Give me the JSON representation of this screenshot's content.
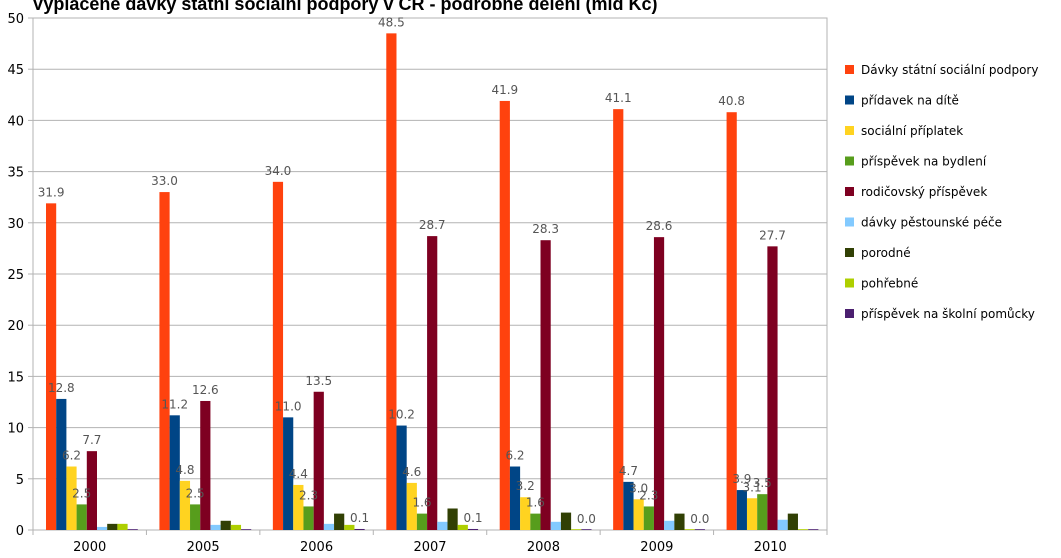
{
  "chart_data": {
    "type": "bar",
    "title": "Vyplacené dávky státní sociální podpory v ČR - podrobné dělení (mld Kč)",
    "categories": [
      "2000",
      "2005",
      "2006",
      "2007",
      "2008",
      "2009",
      "2010"
    ],
    "ylim": [
      0,
      50
    ],
    "yticks": [
      "0",
      "5",
      "10",
      "15",
      "20",
      "25",
      "30",
      "35",
      "40",
      "45",
      "50"
    ],
    "grid": true,
    "legend_position": "right",
    "series": [
      {
        "name": "Dávky státní sociální podpory",
        "color": "#ff420e",
        "values": [
          31.9,
          33.0,
          34.0,
          48.5,
          41.9,
          41.1,
          40.8
        ],
        "labels": [
          "31.9",
          "33.0",
          "34.0",
          "48.5",
          "41.9",
          "41.1",
          "40.8"
        ]
      },
      {
        "name": "přídavek na dítě",
        "color": "#004586",
        "values": [
          12.8,
          11.2,
          11.0,
          10.2,
          6.2,
          4.7,
          3.9
        ],
        "labels": [
          "12.8",
          "11.2",
          "11.0",
          "10.2",
          "6.2",
          "4.7",
          "3.9"
        ]
      },
      {
        "name": "sociální příplatek",
        "color": "#ffd320",
        "values": [
          6.2,
          4.8,
          4.4,
          4.6,
          3.2,
          3.0,
          3.1
        ],
        "labels": [
          "6.2",
          "4.8",
          "4.4",
          "4.6",
          "3.2",
          "3.0",
          "3.1"
        ]
      },
      {
        "name": "příspěvek na bydlení",
        "color": "#579d1c",
        "values": [
          2.5,
          2.5,
          2.3,
          1.6,
          1.6,
          2.3,
          3.5
        ],
        "labels": [
          "2.5",
          "2.5",
          "2.3",
          "1.6",
          "1.6",
          "2.3",
          "3.5"
        ]
      },
      {
        "name": "rodičovský příspěvek",
        "color": "#7e0021",
        "values": [
          7.7,
          12.6,
          13.5,
          28.7,
          28.3,
          28.6,
          27.7
        ],
        "labels": [
          "7.7",
          "12.6",
          "13.5",
          "28.7",
          "28.3",
          "28.6",
          "27.7"
        ]
      },
      {
        "name": "dávky pěstounské péče",
        "color": "#83caff",
        "values": [
          0.3,
          0.5,
          0.6,
          0.8,
          0.8,
          0.9,
          1.0
        ],
        "labels": [
          "",
          "",
          "",
          "",
          "",
          "",
          ""
        ]
      },
      {
        "name": "porodné",
        "color": "#314004",
        "values": [
          0.6,
          0.9,
          1.6,
          2.1,
          1.7,
          1.6,
          1.6
        ],
        "labels": [
          "",
          "",
          "",
          "",
          "",
          "",
          ""
        ]
      },
      {
        "name": "pohřebné",
        "color": "#aecf00",
        "values": [
          0.6,
          0.5,
          0.5,
          0.5,
          0.0,
          0.0,
          0.0
        ],
        "labels": [
          "",
          "",
          "",
          "",
          "",
          "",
          ""
        ]
      },
      {
        "name": "příspěvek na školní pomůcky",
        "color": "#4b1f6f",
        "values": [
          0.0,
          0.0,
          0.1,
          0.1,
          0.0,
          0.0,
          0.0
        ],
        "labels": [
          "",
          "",
          "0.1",
          "0.1",
          "0.0",
          "0.0",
          ""
        ]
      }
    ]
  }
}
